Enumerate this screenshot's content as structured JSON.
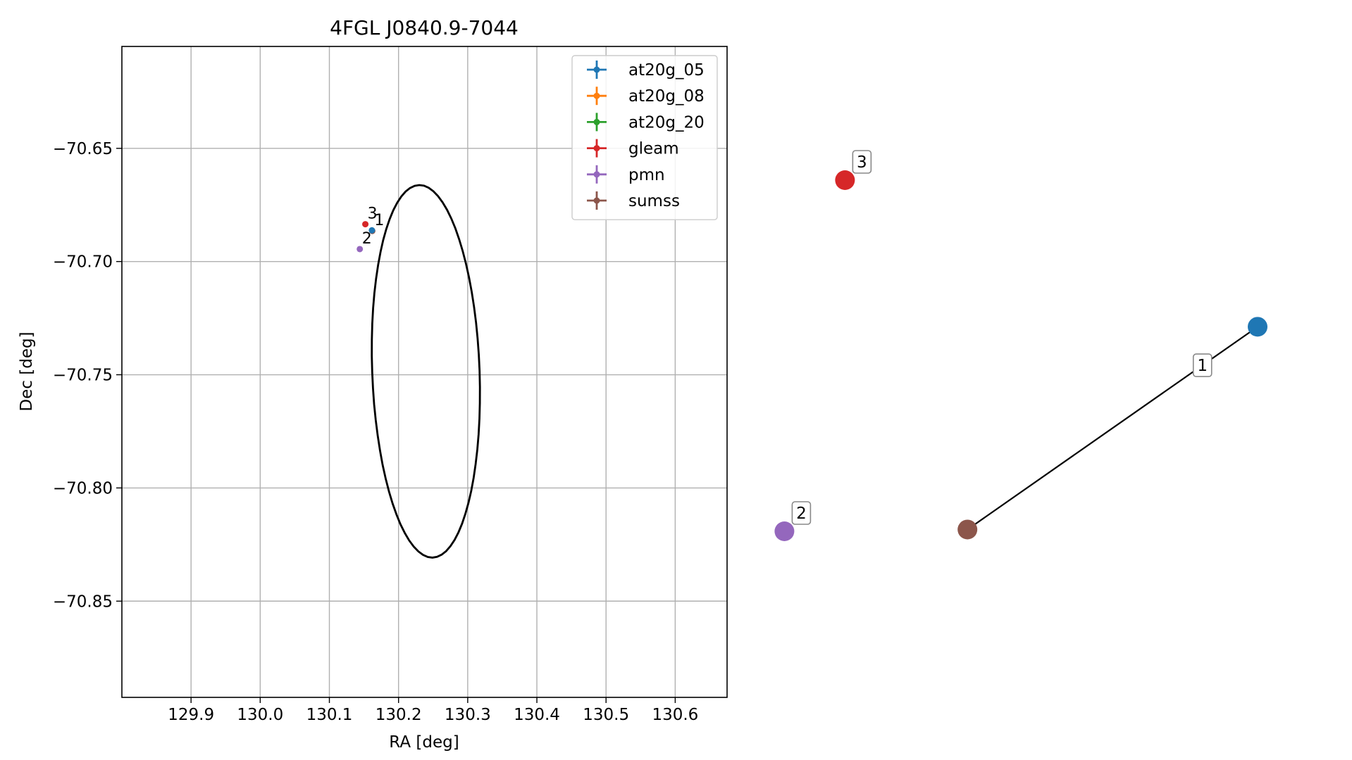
{
  "chart_data": [
    {
      "type": "scatter",
      "title": "4FGL J0840.9-7044",
      "xlabel": "RA [deg]",
      "ylabel": "Dec [deg]",
      "xlim": [
        129.8,
        130.675
      ],
      "ylim": [
        -70.8925,
        -70.605
      ],
      "x_ticks": [
        129.9,
        130.0,
        130.1,
        130.2,
        130.3,
        130.4,
        130.5,
        130.6
      ],
      "x_tick_labels": [
        "129.9",
        "130.0",
        "130.1",
        "130.2",
        "130.3",
        "130.4",
        "130.5",
        "130.6"
      ],
      "y_ticks": [
        -70.65,
        -70.7,
        -70.75,
        -70.8,
        -70.85
      ],
      "y_tick_labels": [
        "−70.65",
        "−70.70",
        "−70.75",
        "−70.80",
        "−70.85"
      ],
      "grid": true,
      "legend_position": "top-right",
      "legend": [
        {
          "name": "at20g_05",
          "color": "#1f77b4"
        },
        {
          "name": "at20g_08",
          "color": "#ff7f0e"
        },
        {
          "name": "at20g_20",
          "color": "#2ca02c"
        },
        {
          "name": "gleam",
          "color": "#d62728"
        },
        {
          "name": "pmn",
          "color": "#9467bd"
        },
        {
          "name": "sumss",
          "color": "#8c564b"
        }
      ],
      "points": [
        {
          "series": "gleam",
          "ra": 130.152,
          "dec": -70.6835,
          "label": "3",
          "color": "#d62728"
        },
        {
          "series": "sumss",
          "ra": 130.162,
          "dec": -70.6865,
          "label": "1",
          "color": "#8c564b"
        },
        {
          "series": "at20g_05",
          "ra": 130.1615,
          "dec": -70.6862,
          "label": "",
          "color": "#1f77b4"
        },
        {
          "series": "pmn",
          "ra": 130.144,
          "dec": -70.6945,
          "label": "2",
          "color": "#9467bd"
        }
      ],
      "ellipse": {
        "center_ra": 130.2395,
        "center_dec": -70.7485,
        "semi_major_deg": 0.0853,
        "semi_minor_deg": 0.0749,
        "angle_deg": 123.5,
        "color": "#000000"
      }
    },
    {
      "type": "graph",
      "nodes": [
        {
          "id": "gleam",
          "label": "3",
          "color": "#d62728",
          "gx": 0.158,
          "gy": 0.862
        },
        {
          "id": "pmn",
          "label": "2",
          "color": "#9467bd",
          "gx": 0.024,
          "gy": 0.074
        },
        {
          "id": "sumss",
          "label": "",
          "color": "#8c564b",
          "gx": 0.429,
          "gy": 0.078
        },
        {
          "id": "at20g_05",
          "label": "",
          "color": "#1f77b4",
          "gx": 1.071,
          "gy": 0.533
        }
      ],
      "edges": [
        {
          "from": "sumss",
          "to": "at20g_05",
          "label": "1"
        }
      ]
    }
  ]
}
